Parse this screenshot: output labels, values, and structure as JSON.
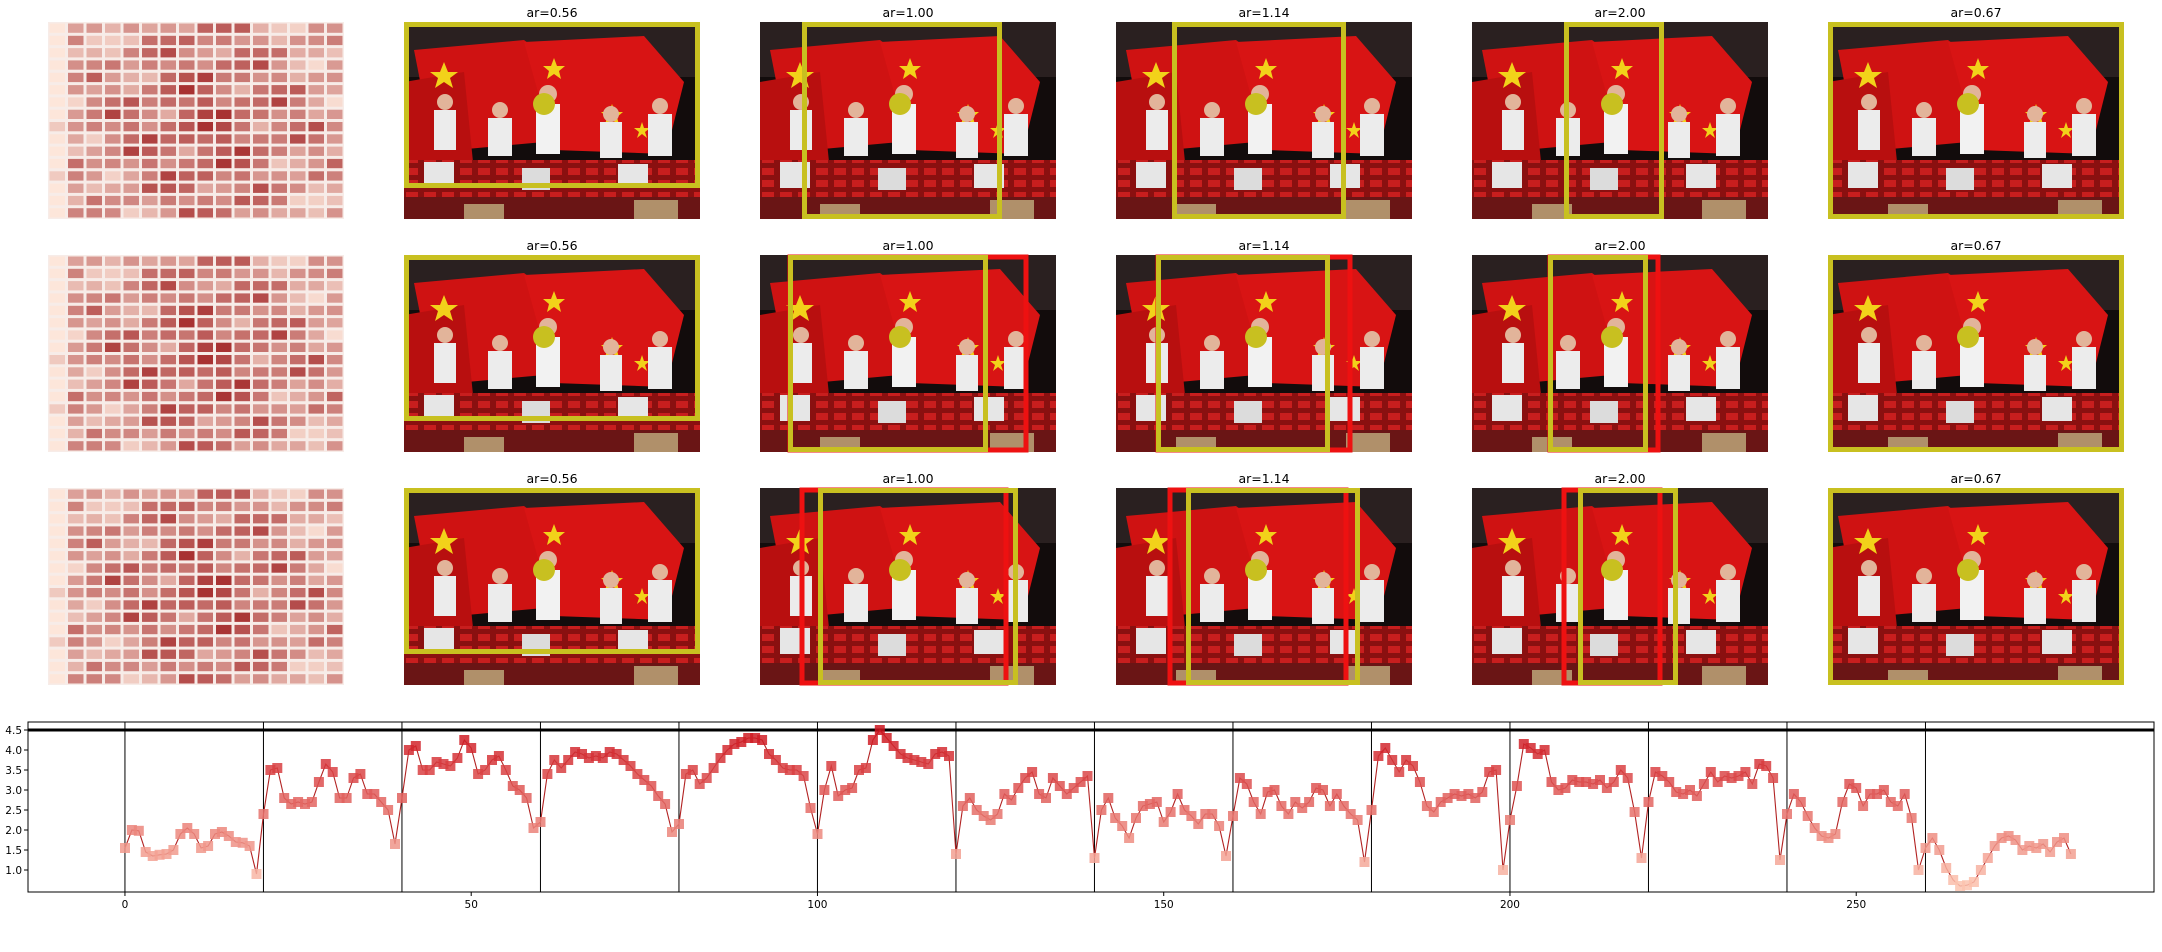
{
  "panels": {
    "crop_titles": [
      "ar=0.56",
      "ar=1.00",
      "ar=1.14",
      "ar=2.00",
      "ar=0.67"
    ],
    "rows": 3,
    "colors": {
      "crop_box": "#c8c020",
      "alt_box": "#ee1111",
      "focus_point": "#c8c020",
      "heatmap_low": "#fde6da",
      "heatmap_high": "#a83232"
    }
  },
  "chart_data": {
    "type": "scatter",
    "title": "",
    "xlabel": "",
    "ylabel": "",
    "xlim": [
      -14,
      293
    ],
    "ylim": [
      0.45,
      4.7
    ],
    "x_ticks": [
      "0",
      "50",
      "100",
      "150",
      "200",
      "250"
    ],
    "y_ticks": [
      "1.0",
      "1.5",
      "2.0",
      "2.5",
      "3.0",
      "3.5",
      "4.0",
      "4.5"
    ],
    "reference_line_y": 4.5,
    "segment_boundaries": [
      0,
      20,
      40,
      60,
      80,
      100,
      120,
      140,
      160,
      180,
      200,
      220,
      240,
      260
    ],
    "grid": false,
    "legend": "none",
    "marker": "square",
    "line_color": "#b22222",
    "series": [
      {
        "values": [
          1.55,
          2.0,
          1.98,
          1.45,
          1.35,
          1.38,
          1.4,
          1.5,
          1.9,
          2.05,
          1.9,
          1.55,
          1.6,
          1.9,
          1.95,
          1.85,
          1.7,
          1.68,
          1.6,
          0.9,
          2.4,
          3.5,
          3.55,
          2.8,
          2.65,
          2.7,
          2.65,
          2.7,
          3.2,
          3.65,
          3.45,
          2.8,
          2.8,
          3.3,
          3.4,
          2.9,
          2.9,
          2.7,
          2.5,
          1.65,
          2.8,
          4.0,
          4.1,
          3.5,
          3.5,
          3.7,
          3.65,
          3.6,
          3.8,
          4.25,
          4.05,
          3.4,
          3.5,
          3.75,
          3.85,
          3.5,
          3.1,
          3.0,
          2.8,
          2.05,
          2.2,
          3.4,
          3.75,
          3.55,
          3.75,
          3.95,
          3.9,
          3.8,
          3.85,
          3.8,
          3.95,
          3.9,
          3.75,
          3.6,
          3.4,
          3.25,
          3.1,
          2.85,
          2.65,
          1.95,
          2.15,
          3.4,
          3.5,
          3.15,
          3.3,
          3.55,
          3.8,
          4.0,
          4.15,
          4.2,
          4.3,
          4.3,
          4.25,
          3.9,
          3.75,
          3.55,
          3.5,
          3.5,
          3.35,
          2.55,
          1.9,
          3.0,
          3.6,
          2.85,
          3.0,
          3.05,
          3.5,
          3.55,
          4.25,
          4.5,
          4.3,
          4.1,
          3.9,
          3.8,
          3.75,
          3.7,
          3.65,
          3.9,
          3.95,
          3.85,
          1.4,
          2.6,
          2.8,
          2.5,
          2.35,
          2.25,
          2.4,
          2.9,
          2.75,
          3.05,
          3.3,
          3.45,
          2.9,
          2.8,
          3.3,
          3.1,
          2.9,
          3.05,
          3.2,
          3.35,
          1.3,
          2.5,
          2.8,
          2.3,
          2.1,
          1.8,
          2.3,
          2.6,
          2.65,
          2.7,
          2.2,
          2.45,
          2.9,
          2.5,
          2.35,
          2.15,
          2.4,
          2.4,
          2.1,
          1.35,
          2.35,
          3.3,
          3.15,
          2.7,
          2.4,
          2.95,
          3.0,
          2.6,
          2.4,
          2.7,
          2.55,
          2.7,
          3.05,
          3.0,
          2.6,
          2.9,
          2.6,
          2.4,
          2.25,
          1.2,
          2.5,
          3.85,
          4.05,
          3.75,
          3.45,
          3.75,
          3.6,
          3.2,
          2.6,
          2.45,
          2.7,
          2.8,
          2.9,
          2.85,
          2.9,
          2.8,
          2.95,
          3.45,
          3.5,
          1.0,
          2.25,
          3.1,
          4.15,
          4.05,
          3.9,
          4.0,
          3.2,
          3.0,
          3.05,
          3.25,
          3.2,
          3.2,
          3.15,
          3.25,
          3.05,
          3.2,
          3.5,
          3.3,
          2.45,
          1.3,
          2.7,
          3.45,
          3.35,
          3.2,
          2.95,
          2.9,
          3.0,
          2.85,
          3.15,
          3.45,
          3.2,
          3.35,
          3.3,
          3.35,
          3.45,
          3.15,
          3.65,
          3.6,
          3.3,
          1.25,
          2.4,
          2.9,
          2.7,
          2.35,
          2.05,
          1.85,
          1.8,
          1.9,
          2.7,
          3.15,
          3.05,
          2.6,
          2.9,
          2.9,
          3.0,
          2.7,
          2.6,
          2.9,
          2.3,
          1.0,
          1.55,
          1.8,
          1.5,
          1.05,
          0.75,
          0.6,
          0.62,
          0.7,
          1.0,
          1.3,
          1.6,
          1.8,
          1.85,
          1.75,
          1.5,
          1.6,
          1.55,
          1.65,
          1.45,
          1.7,
          1.8,
          1.4
        ]
      }
    ]
  }
}
